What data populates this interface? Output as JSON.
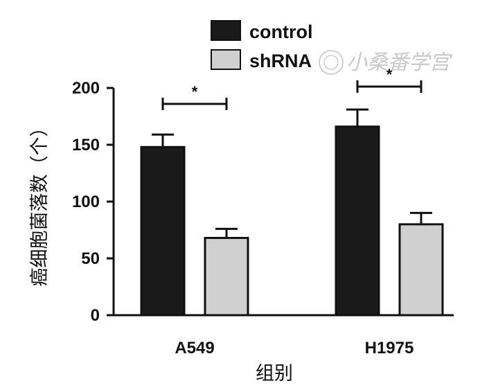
{
  "chart_data": {
    "type": "bar",
    "categories": [
      "A549",
      "H1975"
    ],
    "series": [
      {
        "name": "control",
        "values": [
          148,
          166
        ],
        "errors": [
          11,
          15
        ],
        "color": "#1a1a1a"
      },
      {
        "name": "shRNA",
        "values": [
          68,
          80
        ],
        "errors": [
          8,
          10
        ],
        "color": "#d0d0d0"
      }
    ],
    "title": "",
    "xlabel": "组别",
    "ylabel": "癌细胞菌落数（个）",
    "ylim": [
      0,
      200
    ],
    "yticks": [
      0,
      50,
      100,
      150,
      200
    ],
    "significance": [
      "*",
      "*"
    ],
    "legend_position": "top",
    "grid": false
  },
  "watermark": "小桑番学宫",
  "watermark_color": "#c9c9c9"
}
